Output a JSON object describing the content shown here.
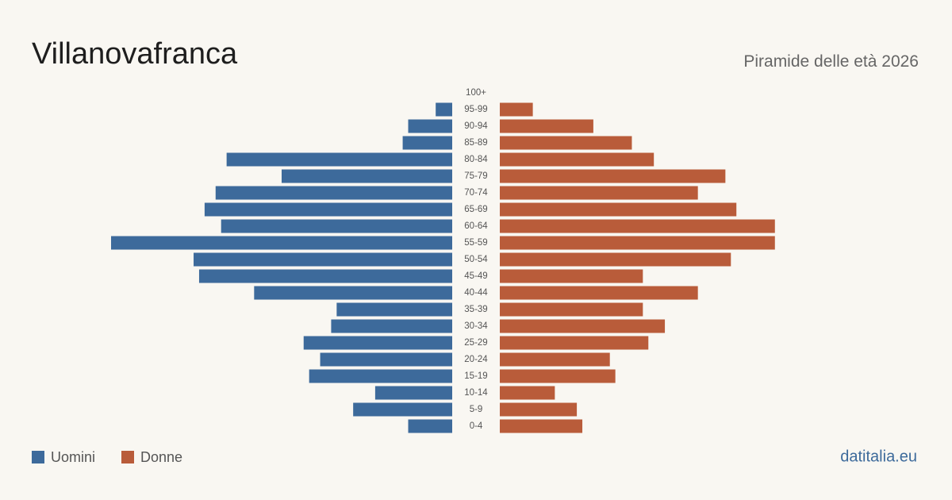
{
  "chart_data": {
    "type": "pyramid",
    "title": "Villanovafranca",
    "subtitle": "Piramide delle età 2026",
    "source": "datitalia.eu",
    "categories": [
      "100+",
      "95-99",
      "90-94",
      "85-89",
      "80-84",
      "75-79",
      "70-74",
      "65-69",
      "60-64",
      "55-59",
      "50-54",
      "45-49",
      "40-44",
      "35-39",
      "30-34",
      "25-29",
      "20-24",
      "15-19",
      "10-14",
      "5-9",
      "0-4"
    ],
    "series": [
      {
        "name": "Uomini",
        "color": "#3d6a9b",
        "values": [
          0,
          3,
          8,
          9,
          41,
          31,
          43,
          45,
          42,
          62,
          47,
          46,
          36,
          21,
          22,
          27,
          24,
          26,
          14,
          18,
          8
        ]
      },
      {
        "name": "Donne",
        "color": "#b95c3a",
        "values": [
          0,
          6,
          17,
          24,
          28,
          41,
          36,
          43,
          50,
          50,
          42,
          26,
          36,
          26,
          30,
          27,
          20,
          21,
          10,
          14,
          15
        ]
      }
    ]
  }
}
